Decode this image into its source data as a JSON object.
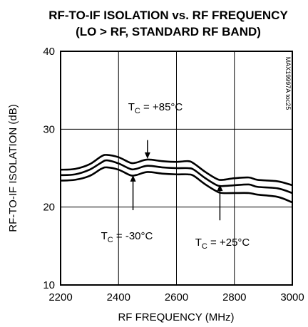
{
  "chart_data": {
    "type": "line",
    "title": "RF-TO-IF ISOLATION vs. RF FREQUENCY",
    "subtitle": "(LO > RF, STANDARD RF BAND)",
    "xlabel": "RF FREQUENCY (MHz)",
    "ylabel": "RF-TO-IF ISOLATION (dB)",
    "xlim": [
      2200,
      3000
    ],
    "ylim": [
      10,
      40
    ],
    "xticks": [
      "2200",
      "2400",
      "2600",
      "2800",
      "3000"
    ],
    "yticks": [
      "10",
      "20",
      "30",
      "40"
    ],
    "grid": true,
    "code": "MAX19997A toc25",
    "series": [
      {
        "name": "T_C = +85°C",
        "x": [
          2200,
          2250,
          2300,
          2340,
          2360,
          2400,
          2440,
          2460,
          2500,
          2550,
          2600,
          2640,
          2660,
          2700,
          2740,
          2760,
          2800,
          2850,
          2880,
          2950,
          3000
        ],
        "values": [
          24.8,
          24.9,
          25.5,
          26.5,
          26.7,
          26.4,
          25.7,
          25.7,
          26.1,
          25.9,
          25.8,
          25.9,
          25.6,
          24.5,
          23.6,
          23.5,
          23.7,
          23.8,
          23.5,
          23.3,
          22.8
        ]
      },
      {
        "name": "T_C = +25°C",
        "x": [
          2200,
          2250,
          2300,
          2340,
          2360,
          2400,
          2440,
          2460,
          2500,
          2550,
          2600,
          2640,
          2660,
          2700,
          2740,
          2760,
          2800,
          2850,
          2880,
          2950,
          3000
        ],
        "values": [
          24.1,
          24.2,
          24.8,
          25.7,
          26.0,
          25.6,
          24.9,
          24.9,
          25.3,
          25.1,
          25.0,
          25.0,
          24.8,
          23.7,
          22.8,
          22.7,
          22.8,
          22.9,
          22.6,
          22.4,
          21.8
        ]
      },
      {
        "name": "T_C = -30°C",
        "x": [
          2200,
          2250,
          2300,
          2340,
          2360,
          2400,
          2440,
          2460,
          2500,
          2550,
          2600,
          2640,
          2660,
          2700,
          2740,
          2760,
          2800,
          2850,
          2880,
          2950,
          3000
        ],
        "values": [
          23.4,
          23.5,
          24.0,
          24.9,
          25.1,
          24.8,
          24.1,
          24.1,
          24.5,
          24.3,
          24.2,
          24.2,
          24.0,
          22.9,
          22.0,
          21.8,
          21.8,
          21.8,
          21.6,
          21.3,
          20.6
        ]
      }
    ],
    "annotations": [
      {
        "label_pre": "T",
        "label_sub": "C",
        "label_post": " = +85°C",
        "x": 2500,
        "arrow_from_y": 28.6,
        "arrow_to_y": 26.2
      },
      {
        "label_pre": "T",
        "label_sub": "C",
        "label_post": " = -30°C",
        "x": 2450,
        "arrow_from_y": 19.6,
        "arrow_to_y": 24.1
      },
      {
        "label_pre": "T",
        "label_sub": "C",
        "label_post": " = +25°C",
        "x": 2750,
        "arrow_from_y": 18.3,
        "arrow_to_y": 22.9
      }
    ]
  }
}
